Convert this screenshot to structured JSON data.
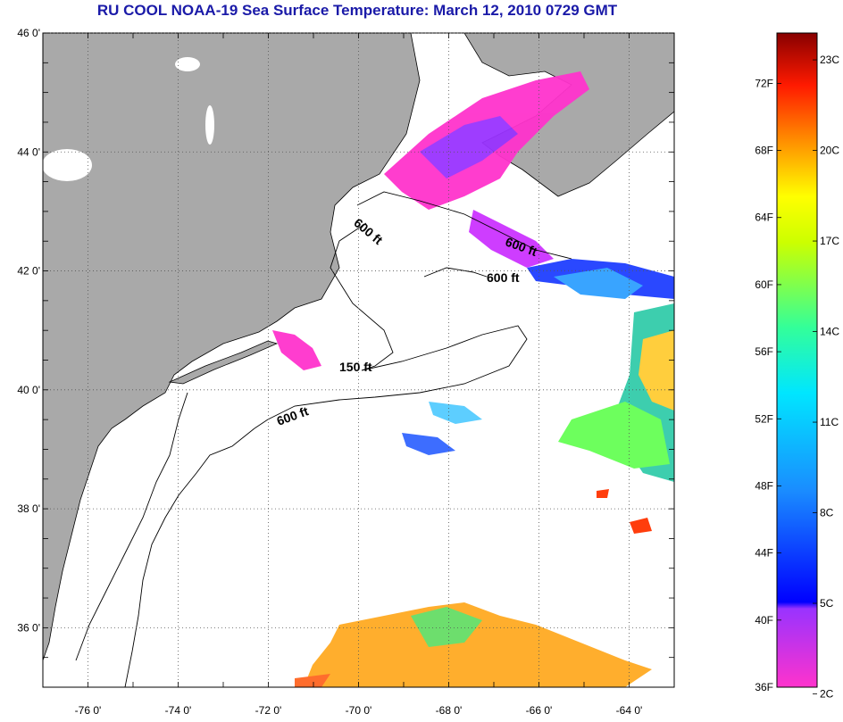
{
  "title": "RU COOL  NOAA-19  Sea Surface Temperature:  March 12, 2010 0729 GMT",
  "map": {
    "lat_ticks": [
      "46 0'",
      "44 0'",
      "42 0'",
      "40 0'",
      "38 0'",
      "36 0'"
    ],
    "lon_ticks": [
      "-76 0'",
      "-74 0'",
      "-72 0'",
      "-70 0'",
      "-68 0'",
      "-66 0'",
      "-64 0'"
    ],
    "lat_range": [
      35,
      46
    ],
    "lon_range": [
      -77,
      -63
    ],
    "contour_labels": [
      "600 ft",
      "600 ft",
      "600 ft",
      "150 ft",
      "600 ft"
    ],
    "colors": {
      "land": "#a9a9a9",
      "ocean": "#ffffff",
      "title": "#1a1aa8"
    }
  },
  "colorbar": {
    "fahrenheit_labels": [
      "72F",
      "68F",
      "64F",
      "60F",
      "56F",
      "52F",
      "48F",
      "44F",
      "40F",
      "36F"
    ],
    "celsius_labels": [
      "23C",
      "20C",
      "17C",
      "14C",
      "11C",
      "8C",
      "5C",
      "2C"
    ],
    "range_f": [
      36,
      75
    ]
  }
}
